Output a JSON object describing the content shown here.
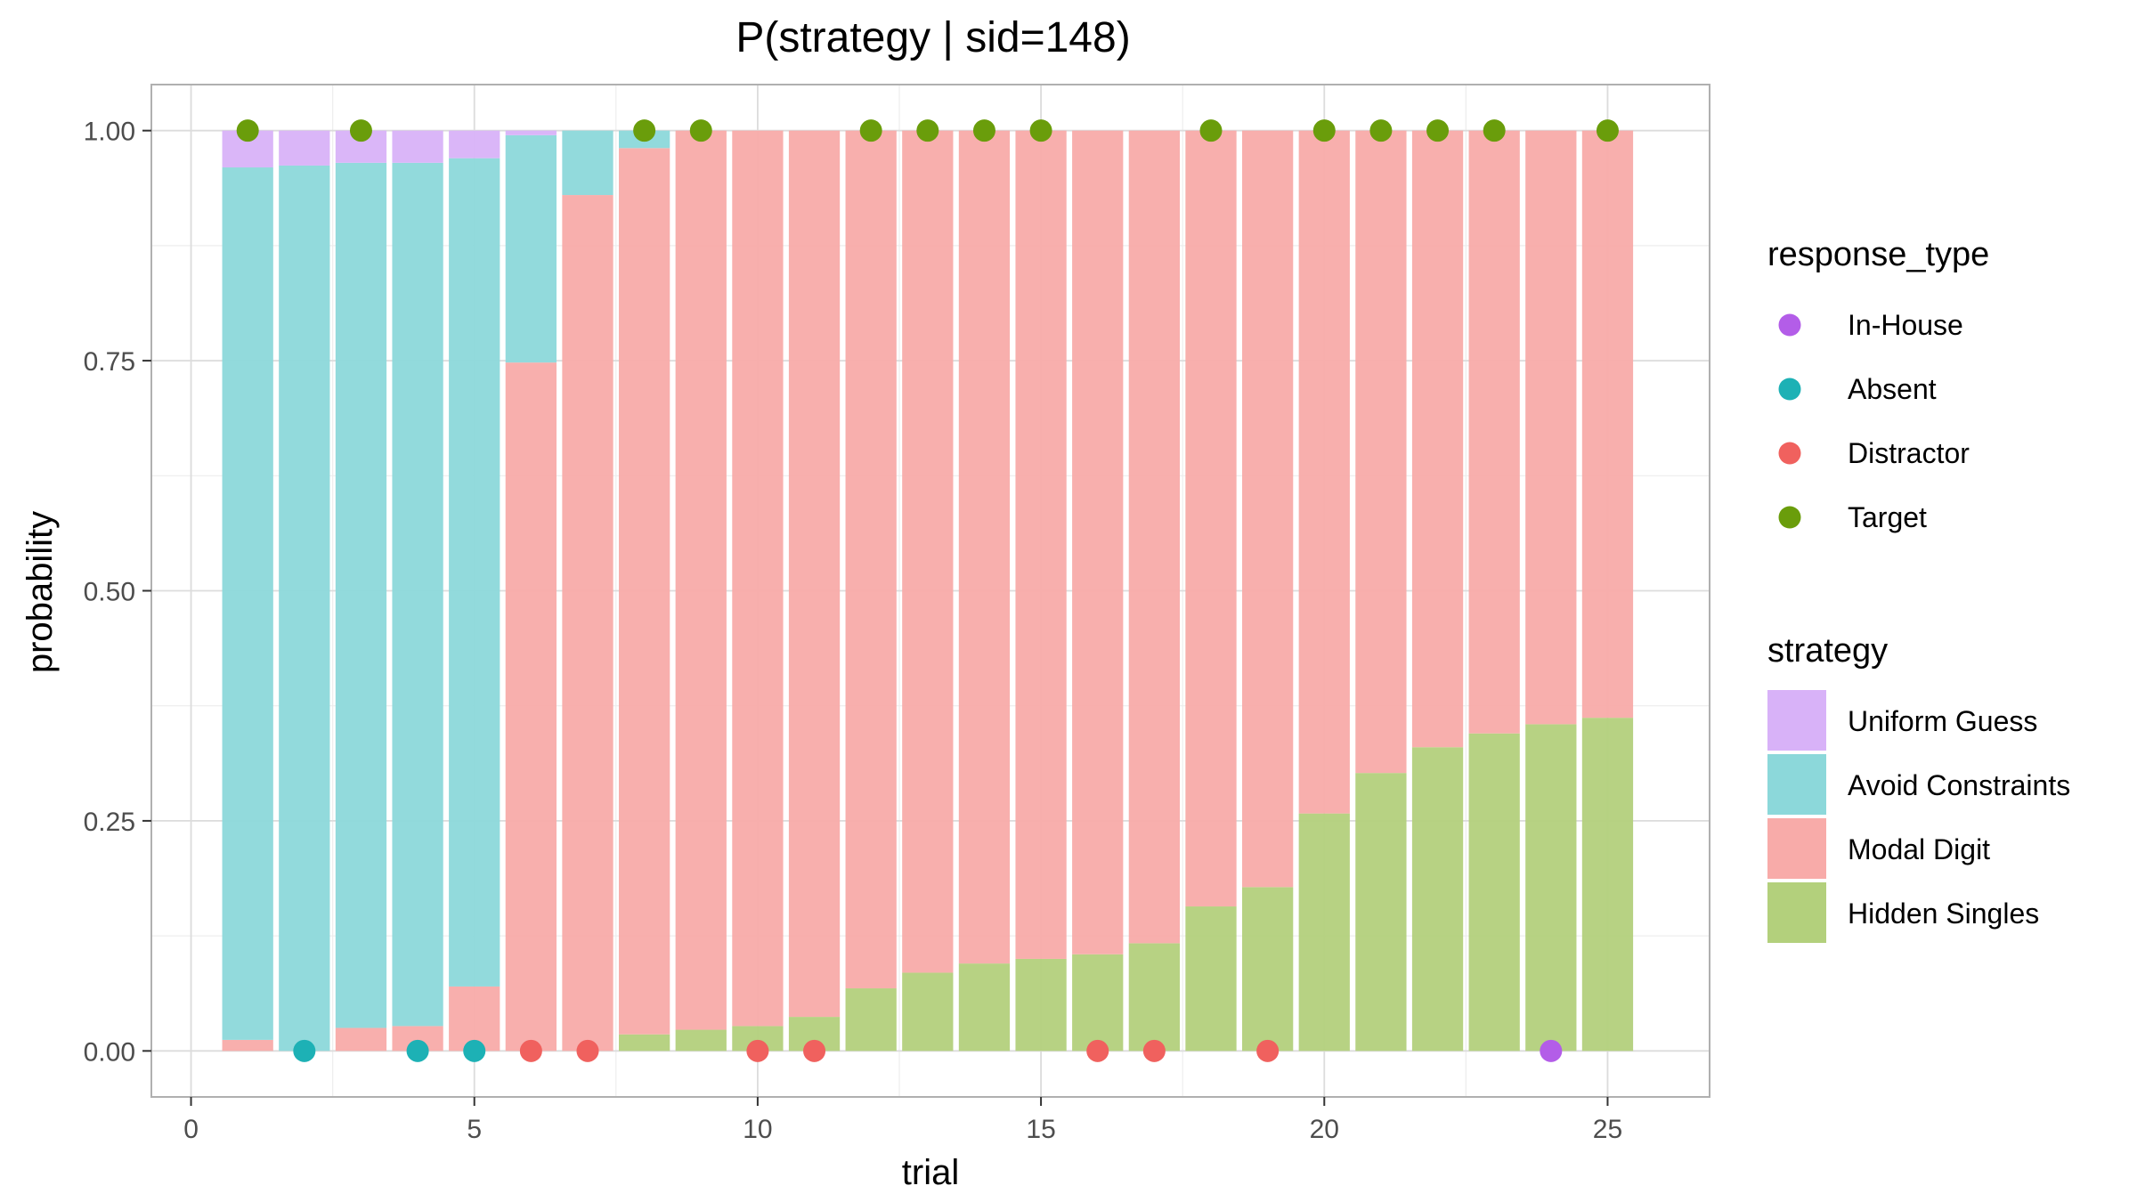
{
  "chart_data": {
    "type": "bar",
    "title": "P(strategy | sid=148)",
    "xlabel": "trial",
    "ylabel": "probability",
    "xlim": [
      -0.7,
      26.8
    ],
    "ylim": [
      -0.05,
      1.05
    ],
    "x_ticks": [
      0,
      5,
      10,
      15,
      20,
      25
    ],
    "y_ticks": [
      0.0,
      0.25,
      0.5,
      0.75,
      1.0
    ],
    "x_tick_labels": [
      "0",
      "5",
      "10",
      "15",
      "20",
      "25"
    ],
    "y_tick_labels": [
      "0.00",
      "0.25",
      "0.50",
      "0.75",
      "1.00"
    ],
    "grid": true,
    "bar_width": 0.9,
    "trials": [
      1,
      2,
      3,
      4,
      5,
      6,
      7,
      8,
      9,
      10,
      11,
      12,
      13,
      14,
      15,
      16,
      17,
      18,
      19,
      20,
      21,
      22,
      23,
      24,
      25
    ],
    "strategy_legend_title": "strategy",
    "series": [
      {
        "name": "Hidden Singles",
        "color": "#B3D07C",
        "values": [
          0.0,
          0.0,
          0.0,
          0.0,
          0.0,
          0.0,
          0.0,
          0.018,
          0.023,
          0.027,
          0.037,
          0.068,
          0.085,
          0.095,
          0.1,
          0.105,
          0.117,
          0.157,
          0.178,
          0.258,
          0.302,
          0.33,
          0.345,
          0.355,
          0.362
        ]
      },
      {
        "name": "Modal Digit",
        "color": "#F8ABA9",
        "values": [
          0.012,
          0.0,
          0.025,
          0.027,
          0.07,
          0.748,
          0.93,
          0.963,
          0.977,
          0.973,
          0.963,
          0.932,
          0.915,
          0.905,
          0.9,
          0.895,
          0.883,
          0.843,
          0.822,
          0.742,
          0.698,
          0.67,
          0.655,
          0.645,
          0.638
        ]
      },
      {
        "name": "Avoid Constraints",
        "color": "#8CD8DA",
        "values": [
          0.948,
          0.962,
          0.94,
          0.938,
          0.9,
          0.247,
          0.07,
          0.019,
          0.0,
          0.0,
          0.0,
          0.0,
          0.0,
          0.0,
          0.0,
          0.0,
          0.0,
          0.0,
          0.0,
          0.0,
          0.0,
          0.0,
          0.0,
          0.0,
          0.0
        ]
      },
      {
        "name": "Uniform Guess",
        "color": "#D8B2F8",
        "values": [
          0.04,
          0.038,
          0.035,
          0.035,
          0.03,
          0.005,
          0.0,
          0.0,
          0.0,
          0.0,
          0.0,
          0.0,
          0.0,
          0.0,
          0.0,
          0.0,
          0.0,
          0.0,
          0.0,
          0.0,
          0.0,
          0.0,
          0.0,
          0.0,
          0.0
        ]
      }
    ],
    "response_legend_title": "response_type",
    "response_types": [
      {
        "name": "In-House",
        "color": "#B35DE8"
      },
      {
        "name": "Absent",
        "color": "#1DB1B5"
      },
      {
        "name": "Distractor",
        "color": "#F0615E"
      },
      {
        "name": "Target",
        "color": "#6A9D0B"
      }
    ],
    "responses": [
      {
        "trial": 1,
        "type": "Target",
        "y": 1
      },
      {
        "trial": 2,
        "type": "Absent",
        "y": 0
      },
      {
        "trial": 3,
        "type": "Target",
        "y": 1
      },
      {
        "trial": 4,
        "type": "Absent",
        "y": 0
      },
      {
        "trial": 5,
        "type": "Absent",
        "y": 0
      },
      {
        "trial": 6,
        "type": "Distractor",
        "y": 0
      },
      {
        "trial": 7,
        "type": "Distractor",
        "y": 0
      },
      {
        "trial": 8,
        "type": "Target",
        "y": 1
      },
      {
        "trial": 9,
        "type": "Target",
        "y": 1
      },
      {
        "trial": 10,
        "type": "Distractor",
        "y": 0
      },
      {
        "trial": 11,
        "type": "Distractor",
        "y": 0
      },
      {
        "trial": 12,
        "type": "Target",
        "y": 1
      },
      {
        "trial": 13,
        "type": "Target",
        "y": 1
      },
      {
        "trial": 14,
        "type": "Target",
        "y": 1
      },
      {
        "trial": 15,
        "type": "Target",
        "y": 1
      },
      {
        "trial": 16,
        "type": "Distractor",
        "y": 0
      },
      {
        "trial": 17,
        "type": "Distractor",
        "y": 0
      },
      {
        "trial": 18,
        "type": "Target",
        "y": 1
      },
      {
        "trial": 19,
        "type": "Distractor",
        "y": 0
      },
      {
        "trial": 20,
        "type": "Target",
        "y": 1
      },
      {
        "trial": 21,
        "type": "Target",
        "y": 1
      },
      {
        "trial": 22,
        "type": "Target",
        "y": 1
      },
      {
        "trial": 23,
        "type": "Target",
        "y": 1
      },
      {
        "trial": 24,
        "type": "In-House",
        "y": 0
      },
      {
        "trial": 25,
        "type": "Target",
        "y": 1
      }
    ]
  }
}
